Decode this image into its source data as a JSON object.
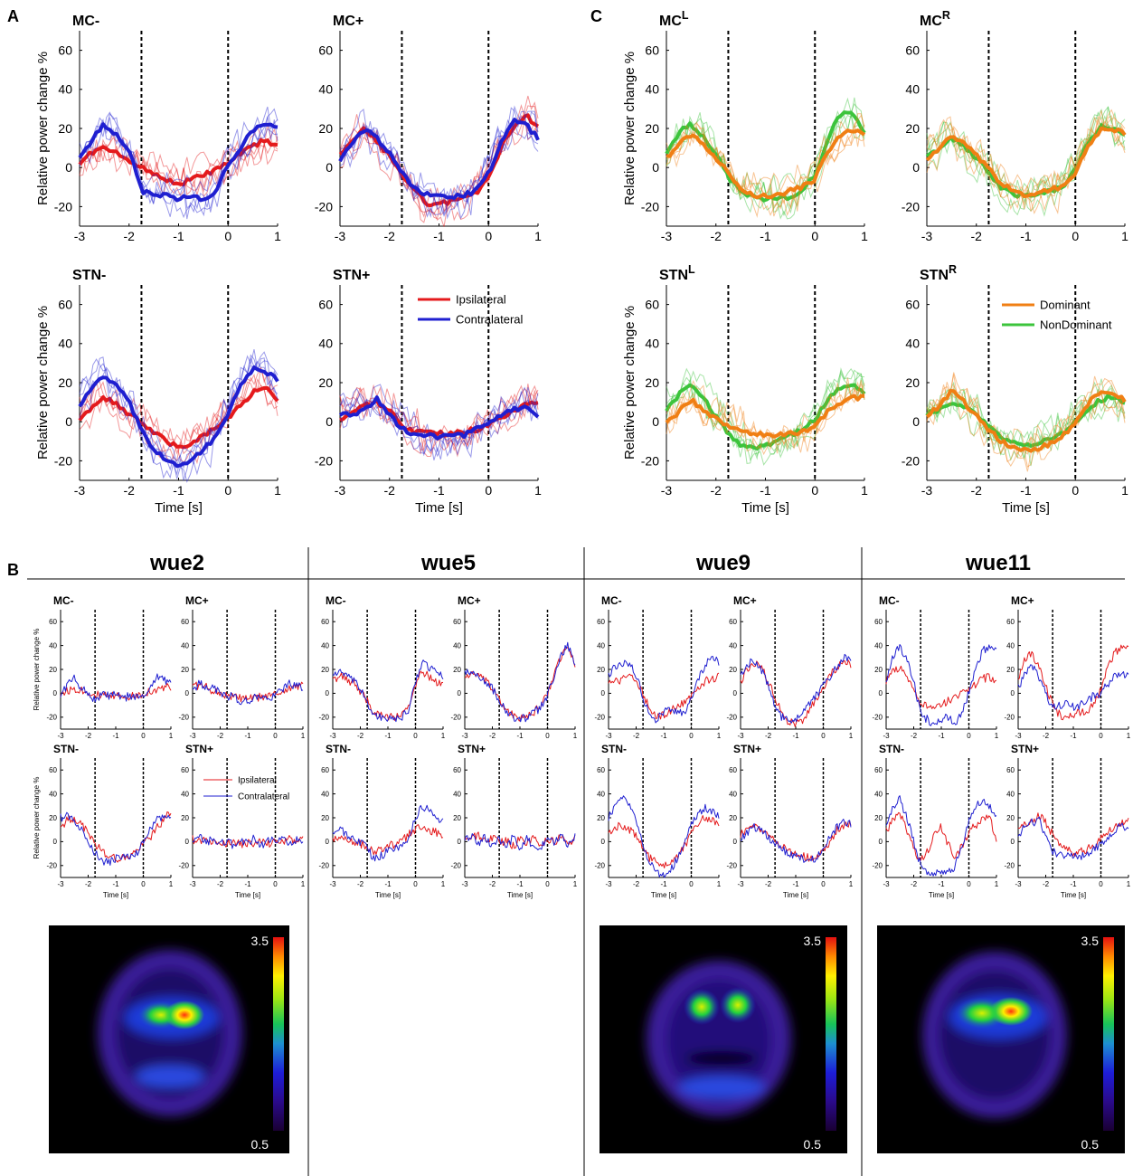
{
  "figure": {
    "panels": {
      "A": "A",
      "B": "B",
      "C": "C"
    },
    "ylabel": "Relative power change %",
    "xlabel": "Time [s]",
    "xticks": [
      "-3",
      "-2",
      "-1",
      "0",
      "1"
    ],
    "yticks": [
      "-20",
      "0",
      "20",
      "40",
      "60"
    ]
  },
  "panel_a": {
    "titles": [
      "MC-",
      "MC+",
      "STN-",
      "STN+"
    ],
    "legend": [
      "Ipsilateral",
      "Contralateral"
    ]
  },
  "panel_c": {
    "titles": [
      "MC",
      "MC",
      "STN",
      "STN"
    ],
    "superscripts": [
      "L",
      "R",
      "L",
      "R"
    ],
    "legend": [
      "Dominant",
      "NonDominant"
    ]
  },
  "panel_b": {
    "patients": [
      "wue2",
      "wue5",
      "wue9",
      "wue11"
    ],
    "titles": [
      "MC-",
      "MC+",
      "STN-",
      "STN+"
    ],
    "legend": [
      "Ipsilateral",
      "Contralateral"
    ],
    "colorbar_max": "3.5",
    "colorbar_min": "0.5"
  },
  "colors": {
    "ipsilateral": "#e41a1c",
    "contralateral": "#1f1fd0",
    "dominant": "#f07f14",
    "nondominant": "#3cc43c"
  },
  "chart_data": {
    "type": "line",
    "xlim": [
      -3,
      1
    ],
    "ylim": [
      -30,
      70
    ],
    "event_lines_x": [
      -1.75,
      0
    ],
    "x": [
      -3,
      -2.75,
      -2.5,
      -2.25,
      -2,
      -1.75,
      -1.5,
      -1.25,
      -1,
      -0.75,
      -0.5,
      -0.25,
      0,
      0.25,
      0.5,
      0.75,
      1
    ],
    "panel_A": {
      "MC-": {
        "Ipsilateral": [
          2,
          8,
          10,
          7,
          4,
          0,
          -3,
          -6,
          -9,
          -6,
          -4,
          -1,
          2,
          7,
          11,
          14,
          11
        ],
        "Contralateral": [
          5,
          14,
          22,
          17,
          9,
          -12,
          -14,
          -14,
          -16,
          -15,
          -16,
          -13,
          2,
          10,
          19,
          23,
          20
        ]
      },
      "MC+": {
        "Ipsilateral": [
          6,
          13,
          20,
          13,
          6,
          -3,
          -12,
          -18,
          -19,
          -17,
          -15,
          -13,
          -6,
          10,
          21,
          27,
          21
        ],
        "Contralateral": [
          4,
          12,
          20,
          15,
          8,
          -3,
          -10,
          -14,
          -15,
          -15,
          -14,
          -12,
          -3,
          12,
          24,
          22,
          15
        ]
      },
      "STN-": {
        "Ipsilateral": [
          0,
          8,
          12,
          9,
          4,
          -1,
          -5,
          -10,
          -13,
          -11,
          -7,
          -3,
          2,
          8,
          15,
          18,
          10
        ],
        "Contralateral": [
          8,
          18,
          23,
          18,
          10,
          -5,
          -14,
          -20,
          -22,
          -20,
          -14,
          -8,
          4,
          18,
          27,
          26,
          21
        ]
      },
      "STN+": {
        "Ipsilateral": [
          1,
          5,
          8,
          10,
          6,
          -2,
          -5,
          -6,
          -6,
          -6,
          -5,
          -4,
          -2,
          2,
          5,
          9,
          10
        ],
        "Contralateral": [
          3,
          4,
          6,
          12,
          3,
          -3,
          -7,
          -7,
          -8,
          -7,
          -7,
          -4,
          -1,
          3,
          6,
          8,
          3
        ]
      }
    },
    "panel_C": {
      "MC^L": {
        "Dominant": [
          5,
          12,
          17,
          12,
          5,
          -3,
          -10,
          -14,
          -15,
          -14,
          -12,
          -10,
          -6,
          8,
          16,
          19,
          17
        ],
        "NonDominant": [
          7,
          18,
          22,
          16,
          7,
          -5,
          -12,
          -15,
          -16,
          -16,
          -15,
          -12,
          -4,
          14,
          27,
          29,
          17
        ]
      },
      "MC^R": {
        "Dominant": [
          4,
          10,
          16,
          12,
          6,
          -1,
          -8,
          -12,
          -14,
          -13,
          -11,
          -10,
          -3,
          10,
          19,
          20,
          17
        ],
        "NonDominant": [
          5,
          10,
          15,
          11,
          5,
          -3,
          -10,
          -14,
          -14,
          -13,
          -12,
          -10,
          -1,
          12,
          21,
          20,
          16
        ]
      },
      "STN^L": {
        "Dominant": [
          -1,
          5,
          11,
          6,
          2,
          -3,
          -4,
          -6,
          -7,
          -7,
          -6,
          -5,
          -3,
          5,
          10,
          12,
          13
        ],
        "NonDominant": [
          6,
          14,
          18,
          12,
          3,
          -6,
          -12,
          -13,
          -12,
          -10,
          -7,
          -4,
          1,
          11,
          17,
          19,
          15
        ]
      },
      "STN^R": {
        "Dominant": [
          3,
          8,
          16,
          10,
          3,
          -4,
          -10,
          -13,
          -15,
          -14,
          -11,
          -7,
          -1,
          9,
          16,
          14,
          11
        ],
        "NonDominant": [
          4,
          6,
          9,
          8,
          4,
          -2,
          -8,
          -11,
          -12,
          -11,
          -9,
          -6,
          0,
          6,
          11,
          13,
          10
        ]
      }
    },
    "panel_B": {
      "wue2": {
        "MC-": {
          "Ipsilateral": [
            0,
            2,
            4,
            3,
            1,
            -1,
            -2,
            -3,
            -2,
            -2,
            -3,
            -2,
            0,
            2,
            3,
            5,
            5
          ],
          "Contralateral": [
            -2,
            8,
            12,
            5,
            0,
            -6,
            -1,
            -2,
            -1,
            -5,
            -2,
            -3,
            -4,
            6,
            14,
            12,
            8
          ]
        },
        "MC+": {
          "Ipsilateral": [
            8,
            6,
            5,
            2,
            0,
            -2,
            -3,
            -4,
            -5,
            -4,
            -3,
            -2,
            -1,
            2,
            4,
            6,
            7
          ],
          "Contralateral": [
            3,
            8,
            6,
            4,
            1,
            -3,
            -2,
            -8,
            -6,
            -4,
            -2,
            -6,
            -2,
            4,
            8,
            6,
            5
          ]
        },
        "STN-": {
          "Ipsilateral": [
            12,
            18,
            20,
            14,
            8,
            -2,
            -8,
            -12,
            -14,
            -14,
            -12,
            -8,
            -2,
            4,
            12,
            18,
            26
          ],
          "Contralateral": [
            20,
            22,
            18,
            10,
            2,
            -10,
            -16,
            -18,
            -14,
            -12,
            -14,
            -10,
            0,
            10,
            18,
            22,
            18
          ]
        },
        "STN+": {
          "Ipsilateral": [
            2,
            0,
            3,
            -1,
            1,
            -2,
            0,
            -3,
            -1,
            -2,
            0,
            -2,
            1,
            -1,
            2,
            0,
            2
          ],
          "Contralateral": [
            -2,
            4,
            -1,
            3,
            -3,
            2,
            -4,
            1,
            -2,
            3,
            -3,
            2,
            -1,
            3,
            -2,
            1,
            -1
          ]
        }
      },
      "wue5": {
        "MC-": {
          "Ipsilateral": [
            10,
            15,
            12,
            8,
            2,
            -6,
            -16,
            -18,
            -20,
            -20,
            -18,
            -12,
            6,
            18,
            14,
            10,
            8
          ],
          "Contralateral": [
            16,
            18,
            14,
            10,
            4,
            -8,
            -18,
            -20,
            -22,
            -22,
            -20,
            -14,
            10,
            26,
            22,
            18,
            14
          ]
        },
        "MC+": {
          "Ipsilateral": [
            14,
            16,
            14,
            10,
            4,
            -4,
            -14,
            -18,
            -22,
            -20,
            -16,
            -10,
            0,
            16,
            32,
            38,
            24
          ],
          "Contralateral": [
            16,
            18,
            14,
            10,
            4,
            -6,
            -16,
            -20,
            -22,
            -20,
            -16,
            -12,
            -2,
            14,
            34,
            40,
            26
          ]
        },
        "STN-": {
          "Ipsilateral": [
            0,
            4,
            2,
            0,
            -2,
            -4,
            -10,
            -6,
            -4,
            -2,
            0,
            6,
            10,
            12,
            10,
            8,
            6
          ],
          "Contralateral": [
            8,
            10,
            6,
            2,
            0,
            -6,
            -14,
            -12,
            -8,
            -6,
            -4,
            4,
            20,
            30,
            26,
            20,
            16
          ]
        },
        "STN+": {
          "Ipsilateral": [
            4,
            2,
            6,
            0,
            4,
            -2,
            2,
            -4,
            2,
            -2,
            4,
            -2,
            2,
            0,
            4,
            -2,
            2
          ],
          "Contralateral": [
            0,
            6,
            -2,
            4,
            -4,
            2,
            -6,
            4,
            -8,
            2,
            -4,
            -6,
            4,
            -2,
            6,
            -4,
            4
          ]
        }
      },
      "wue9": {
        "MC-": {
          "Ipsilateral": [
            8,
            10,
            12,
            14,
            10,
            0,
            -14,
            -20,
            -18,
            -14,
            -12,
            -8,
            -2,
            6,
            10,
            12,
            14
          ],
          "Contralateral": [
            16,
            22,
            26,
            24,
            16,
            -4,
            -18,
            -22,
            -16,
            -12,
            -16,
            -18,
            -4,
            12,
            24,
            30,
            26
          ]
        },
        "MC+": {
          "Ipsilateral": [
            10,
            20,
            26,
            22,
            10,
            -4,
            -16,
            -24,
            -26,
            -22,
            -14,
            -6,
            4,
            16,
            22,
            26,
            24
          ],
          "Contralateral": [
            16,
            24,
            28,
            20,
            6,
            -12,
            -20,
            -24,
            -22,
            -16,
            -8,
            -2,
            6,
            14,
            22,
            30,
            28
          ]
        },
        "STN-": {
          "Ipsilateral": [
            8,
            12,
            14,
            10,
            4,
            -6,
            -14,
            -18,
            -20,
            -18,
            -12,
            -4,
            6,
            16,
            20,
            18,
            14
          ],
          "Contralateral": [
            20,
            30,
            38,
            32,
            18,
            -4,
            -18,
            -26,
            -28,
            -24,
            -14,
            0,
            14,
            24,
            28,
            26,
            22
          ]
        },
        "STN+": {
          "Ipsilateral": [
            6,
            10,
            14,
            10,
            6,
            0,
            -4,
            -8,
            -10,
            -12,
            -14,
            -12,
            -8,
            0,
            10,
            14,
            16
          ],
          "Contralateral": [
            2,
            8,
            12,
            10,
            4,
            -2,
            -6,
            -10,
            -12,
            -14,
            -16,
            -14,
            -6,
            4,
            12,
            16,
            14
          ]
        }
      },
      "wue11": {
        "MC-": {
          "Ipsilateral": [
            10,
            18,
            22,
            14,
            2,
            -8,
            -12,
            -14,
            -10,
            -6,
            -2,
            0,
            4,
            8,
            12,
            14,
            10
          ],
          "Contralateral": [
            10,
            30,
            40,
            28,
            10,
            -18,
            -22,
            -26,
            -22,
            -20,
            -24,
            -18,
            2,
            20,
            36,
            38,
            34
          ]
        },
        "MC+": {
          "Ipsilateral": [
            12,
            28,
            34,
            22,
            6,
            -10,
            -18,
            -20,
            -18,
            -16,
            -14,
            -10,
            4,
            22,
            34,
            38,
            36
          ],
          "Contralateral": [
            4,
            18,
            24,
            14,
            0,
            -12,
            -10,
            -8,
            -12,
            -10,
            -6,
            -2,
            0,
            8,
            14,
            16,
            14
          ]
        },
        "STN-": {
          "Ipsilateral": [
            8,
            20,
            24,
            10,
            -6,
            -16,
            -8,
            6,
            12,
            -2,
            -14,
            -4,
            8,
            14,
            18,
            22,
            -2
          ],
          "Contralateral": [
            12,
            28,
            36,
            20,
            0,
            -20,
            -26,
            -28,
            -24,
            -26,
            -20,
            -4,
            16,
            30,
            36,
            30,
            20
          ]
        },
        "STN+": {
          "Ipsilateral": [
            10,
            14,
            16,
            22,
            16,
            6,
            -2,
            -6,
            -10,
            -8,
            -6,
            -4,
            2,
            8,
            14,
            16,
            18
          ],
          "Contralateral": [
            6,
            12,
            16,
            18,
            6,
            -8,
            -12,
            -10,
            -12,
            -14,
            -10,
            -6,
            -2,
            4,
            10,
            14,
            8
          ]
        }
      }
    }
  }
}
